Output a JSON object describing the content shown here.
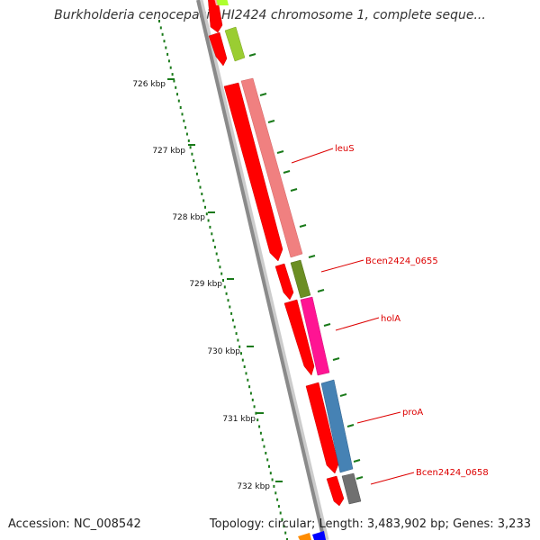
{
  "title": "Burkholderia cenocepacia HI2424 chromosome 1, complete seque...",
  "footer": {
    "accession": "Accession: NC_008542",
    "stats": "Topology: circular; Length: 3,483,902 bp; Genes: 3,233"
  },
  "colors": {
    "backbone": "#8a8a8a",
    "scale_tick": "#1a7a1a",
    "label_text": "#dd0000",
    "leader_line": "#dd0000",
    "reverse_gene": "#ff0000"
  },
  "scale_ticks": [
    "726 kbp",
    "727 kbp",
    "728 kbp",
    "729 kbp",
    "730 kbp",
    "731 kbp",
    "732 kbp"
  ],
  "gene_labels": [
    "leuS",
    "Bcen2424_0655",
    "holA",
    "proA",
    "Bcen2424_0658"
  ],
  "gene_colors": [
    "#f08080",
    "#6b8e23",
    "#ff1493",
    "#4682b4",
    "#707070"
  ]
}
